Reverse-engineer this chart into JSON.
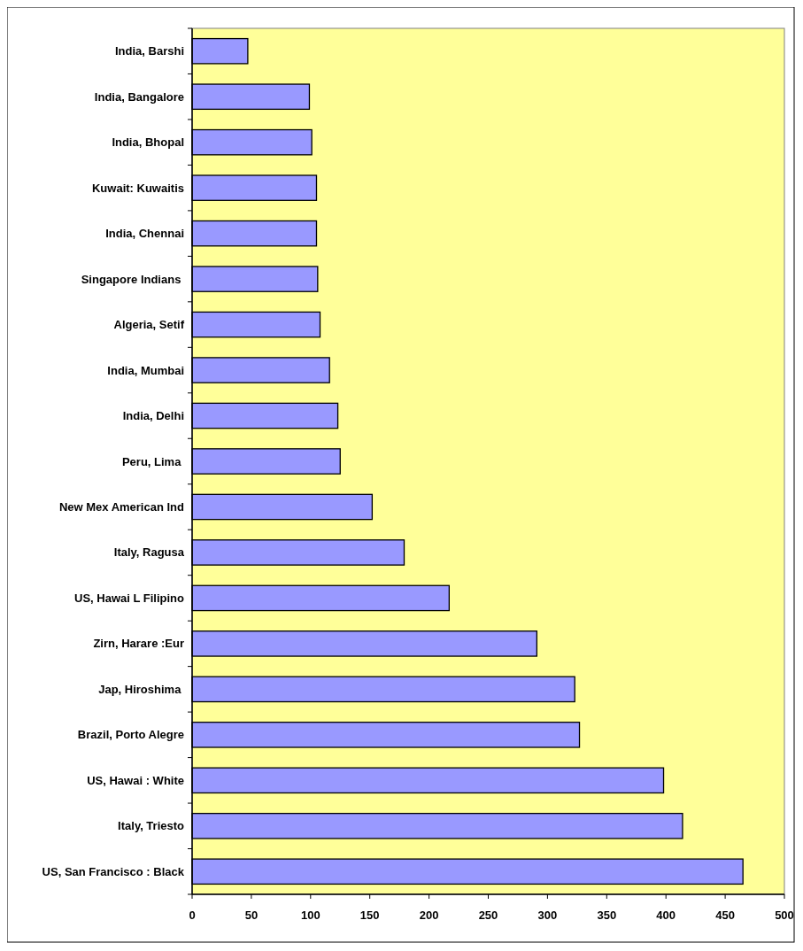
{
  "chart_data": {
    "type": "bar",
    "orientation": "horizontal",
    "categories": [
      "India, Barshi",
      "India, Bangalore",
      "India, Bhopal",
      "Kuwait: Kuwaitis",
      "India, Chennai",
      "Singapore Indians ",
      "Algeria, Setif",
      "India, Mumbai",
      "India, Delhi",
      "Peru, Lima ",
      "New Mex American Ind",
      "Italy, Ragusa",
      "US, Hawai L Filipino",
      "Zirn, Harare :Eur",
      "Jap, Hiroshima ",
      "Brazil, Porto Alegre",
      "US, Hawai : White",
      "Italy, Triesto",
      "US, San Francisco : Black"
    ],
    "values": [
      47,
      99,
      101,
      105,
      105,
      106,
      108,
      116,
      123,
      125,
      152,
      179,
      217,
      291,
      323,
      327,
      398,
      414,
      465
    ],
    "color": "#9999ff",
    "xlim": [
      0,
      500
    ],
    "xticks": [
      0,
      50,
      100,
      150,
      200,
      250,
      300,
      350,
      400,
      450,
      500
    ],
    "grid": false
  }
}
